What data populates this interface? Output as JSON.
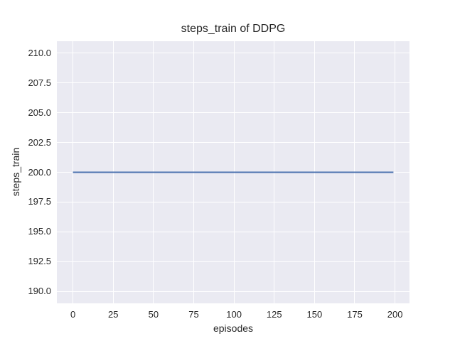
{
  "chart_data": {
    "type": "line",
    "title": "steps_train of DDPG",
    "xlabel": "episodes",
    "ylabel": "steps_train",
    "xlim": [
      -10,
      209
    ],
    "ylim": [
      189,
      211
    ],
    "xticks": [
      0,
      25,
      50,
      75,
      100,
      125,
      150,
      175,
      200
    ],
    "xtick_labels": [
      "0",
      "25",
      "50",
      "75",
      "100",
      "125",
      "150",
      "175",
      "200"
    ],
    "yticks": [
      190.0,
      192.5,
      195.0,
      197.5,
      200.0,
      202.5,
      205.0,
      207.5,
      210.0
    ],
    "ytick_labels": [
      "190.0",
      "192.5",
      "195.0",
      "197.5",
      "200.0",
      "202.5",
      "205.0",
      "207.5",
      "210.0"
    ],
    "grid": true,
    "legend_position": "none",
    "series": [
      {
        "name": "steps_train",
        "color": "#4C72B0",
        "x": [
          0,
          199
        ],
        "y": [
          200,
          200
        ]
      }
    ],
    "colors": {
      "figure_background": "#FFFFFF",
      "plot_background": "#EAEAF2",
      "gridline": "#FFFFFF",
      "text": "#262626"
    }
  }
}
